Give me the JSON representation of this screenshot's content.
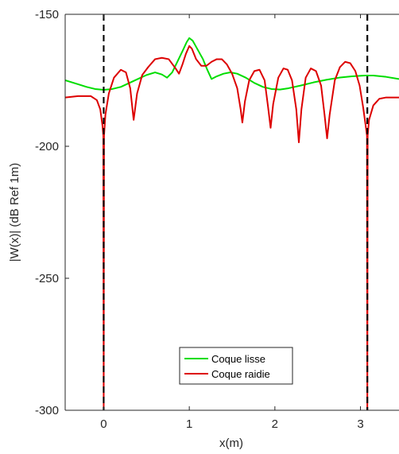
{
  "chart_data": {
    "type": "line",
    "title": "",
    "xlabel": "x(m)",
    "ylabel": "|W(x)| (dB Ref 1m)",
    "xlim": [
      -0.45,
      3.45
    ],
    "ylim": [
      -300,
      -150
    ],
    "xticks": [
      0,
      1,
      2,
      3
    ],
    "yticks": [
      -150,
      -200,
      -250,
      -300
    ],
    "grid": false,
    "legend_position": "bottom-center",
    "boundary_lines": {
      "x": [
        0,
        3.08
      ],
      "color": "#000000",
      "style": "dashed"
    },
    "series": [
      {
        "name": "Coque lisse",
        "color": "#00dd00",
        "points": [
          [
            -0.45,
            -175
          ],
          [
            -0.3,
            -176.5
          ],
          [
            -0.2,
            -177.5
          ],
          [
            -0.1,
            -178.3
          ],
          [
            0.0,
            -178.6
          ],
          [
            0.1,
            -178.3
          ],
          [
            0.2,
            -177.5
          ],
          [
            0.3,
            -176
          ],
          [
            0.4,
            -174.5
          ],
          [
            0.5,
            -173
          ],
          [
            0.6,
            -172
          ],
          [
            0.68,
            -172.8
          ],
          [
            0.74,
            -174
          ],
          [
            0.8,
            -172
          ],
          [
            0.86,
            -168
          ],
          [
            0.92,
            -164
          ],
          [
            0.97,
            -160.5
          ],
          [
            1.0,
            -159
          ],
          [
            1.04,
            -160
          ],
          [
            1.1,
            -163.5
          ],
          [
            1.16,
            -167
          ],
          [
            1.21,
            -171
          ],
          [
            1.26,
            -174.5
          ],
          [
            1.32,
            -173.5
          ],
          [
            1.4,
            -172.5
          ],
          [
            1.48,
            -172
          ],
          [
            1.56,
            -172.5
          ],
          [
            1.66,
            -174
          ],
          [
            1.76,
            -176
          ],
          [
            1.86,
            -177.5
          ],
          [
            1.96,
            -178.3
          ],
          [
            2.06,
            -178.5
          ],
          [
            2.16,
            -178
          ],
          [
            2.3,
            -177
          ],
          [
            2.45,
            -175.8
          ],
          [
            2.6,
            -174.8
          ],
          [
            2.75,
            -174
          ],
          [
            2.9,
            -173.5
          ],
          [
            3.05,
            -173.2
          ],
          [
            3.15,
            -173.2
          ],
          [
            3.3,
            -173.7
          ],
          [
            3.45,
            -174.5
          ]
        ]
      },
      {
        "name": "Coque raidie",
        "color": "#dd0000",
        "points": [
          [
            -0.45,
            -181.5
          ],
          [
            -0.3,
            -181
          ],
          [
            -0.15,
            -181
          ],
          [
            -0.08,
            -182.5
          ],
          [
            -0.04,
            -186
          ],
          [
            -0.015,
            -192
          ],
          [
            -0.004,
            -196
          ],
          [
            0.0,
            -300
          ],
          [
            0.004,
            -196
          ],
          [
            0.02,
            -188
          ],
          [
            0.06,
            -180
          ],
          [
            0.12,
            -174
          ],
          [
            0.2,
            -171
          ],
          [
            0.26,
            -172
          ],
          [
            0.31,
            -178
          ],
          [
            0.35,
            -190
          ],
          [
            0.39,
            -180
          ],
          [
            0.45,
            -173
          ],
          [
            0.52,
            -170
          ],
          [
            0.6,
            -167
          ],
          [
            0.68,
            -166.5
          ],
          [
            0.76,
            -167
          ],
          [
            0.84,
            -170.5
          ],
          [
            0.88,
            -172.5
          ],
          [
            0.92,
            -169
          ],
          [
            0.96,
            -165
          ],
          [
            1.0,
            -162
          ],
          [
            1.03,
            -163
          ],
          [
            1.08,
            -167
          ],
          [
            1.14,
            -169.5
          ],
          [
            1.2,
            -169.5
          ],
          [
            1.26,
            -168
          ],
          [
            1.32,
            -167
          ],
          [
            1.38,
            -167
          ],
          [
            1.44,
            -169
          ],
          [
            1.5,
            -172.5
          ],
          [
            1.56,
            -178
          ],
          [
            1.6,
            -186
          ],
          [
            1.62,
            -191
          ],
          [
            1.65,
            -183
          ],
          [
            1.7,
            -175
          ],
          [
            1.76,
            -171.5
          ],
          [
            1.82,
            -171
          ],
          [
            1.88,
            -175
          ],
          [
            1.92,
            -185
          ],
          [
            1.95,
            -193
          ],
          [
            1.98,
            -184
          ],
          [
            2.04,
            -174
          ],
          [
            2.1,
            -170.5
          ],
          [
            2.15,
            -171
          ],
          [
            2.2,
            -175
          ],
          [
            2.25,
            -186
          ],
          [
            2.28,
            -198.5
          ],
          [
            2.31,
            -186
          ],
          [
            2.36,
            -174
          ],
          [
            2.42,
            -170.5
          ],
          [
            2.48,
            -171.5
          ],
          [
            2.54,
            -177
          ],
          [
            2.58,
            -188
          ],
          [
            2.61,
            -197
          ],
          [
            2.64,
            -188
          ],
          [
            2.7,
            -175
          ],
          [
            2.76,
            -170
          ],
          [
            2.82,
            -168
          ],
          [
            2.88,
            -168.5
          ],
          [
            2.94,
            -171.5
          ],
          [
            2.99,
            -177
          ],
          [
            3.03,
            -185
          ],
          [
            3.06,
            -192
          ],
          [
            3.076,
            -196
          ],
          [
            3.08,
            -300
          ],
          [
            3.084,
            -196
          ],
          [
            3.1,
            -190
          ],
          [
            3.15,
            -184.5
          ],
          [
            3.22,
            -182
          ],
          [
            3.3,
            -181.5
          ],
          [
            3.45,
            -181.5
          ]
        ]
      }
    ]
  }
}
